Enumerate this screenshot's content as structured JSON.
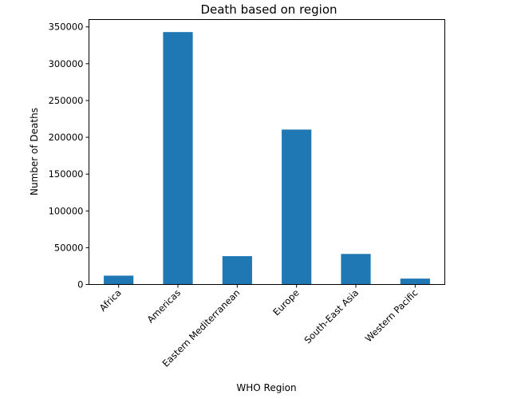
{
  "chart_data": {
    "type": "bar",
    "title": "Death based on region",
    "xlabel": "WHO Region",
    "ylabel": "Number of Deaths",
    "categories": [
      "Africa",
      "Americas",
      "Eastern Mediterranean",
      "Europe",
      "South-East Asia",
      "Western Pacific"
    ],
    "values": [
      12000,
      343000,
      38500,
      210500,
      41500,
      8000
    ],
    "ylim": [
      0,
      360000
    ],
    "yticks": [
      0,
      50000,
      100000,
      150000,
      200000,
      250000,
      300000,
      350000
    ],
    "ytick_labels": [
      "0",
      "50000",
      "100000",
      "150000",
      "200000",
      "250000",
      "300000",
      "350000"
    ],
    "bar_color": "#1f77b4",
    "grid": false,
    "legend": "none"
  }
}
